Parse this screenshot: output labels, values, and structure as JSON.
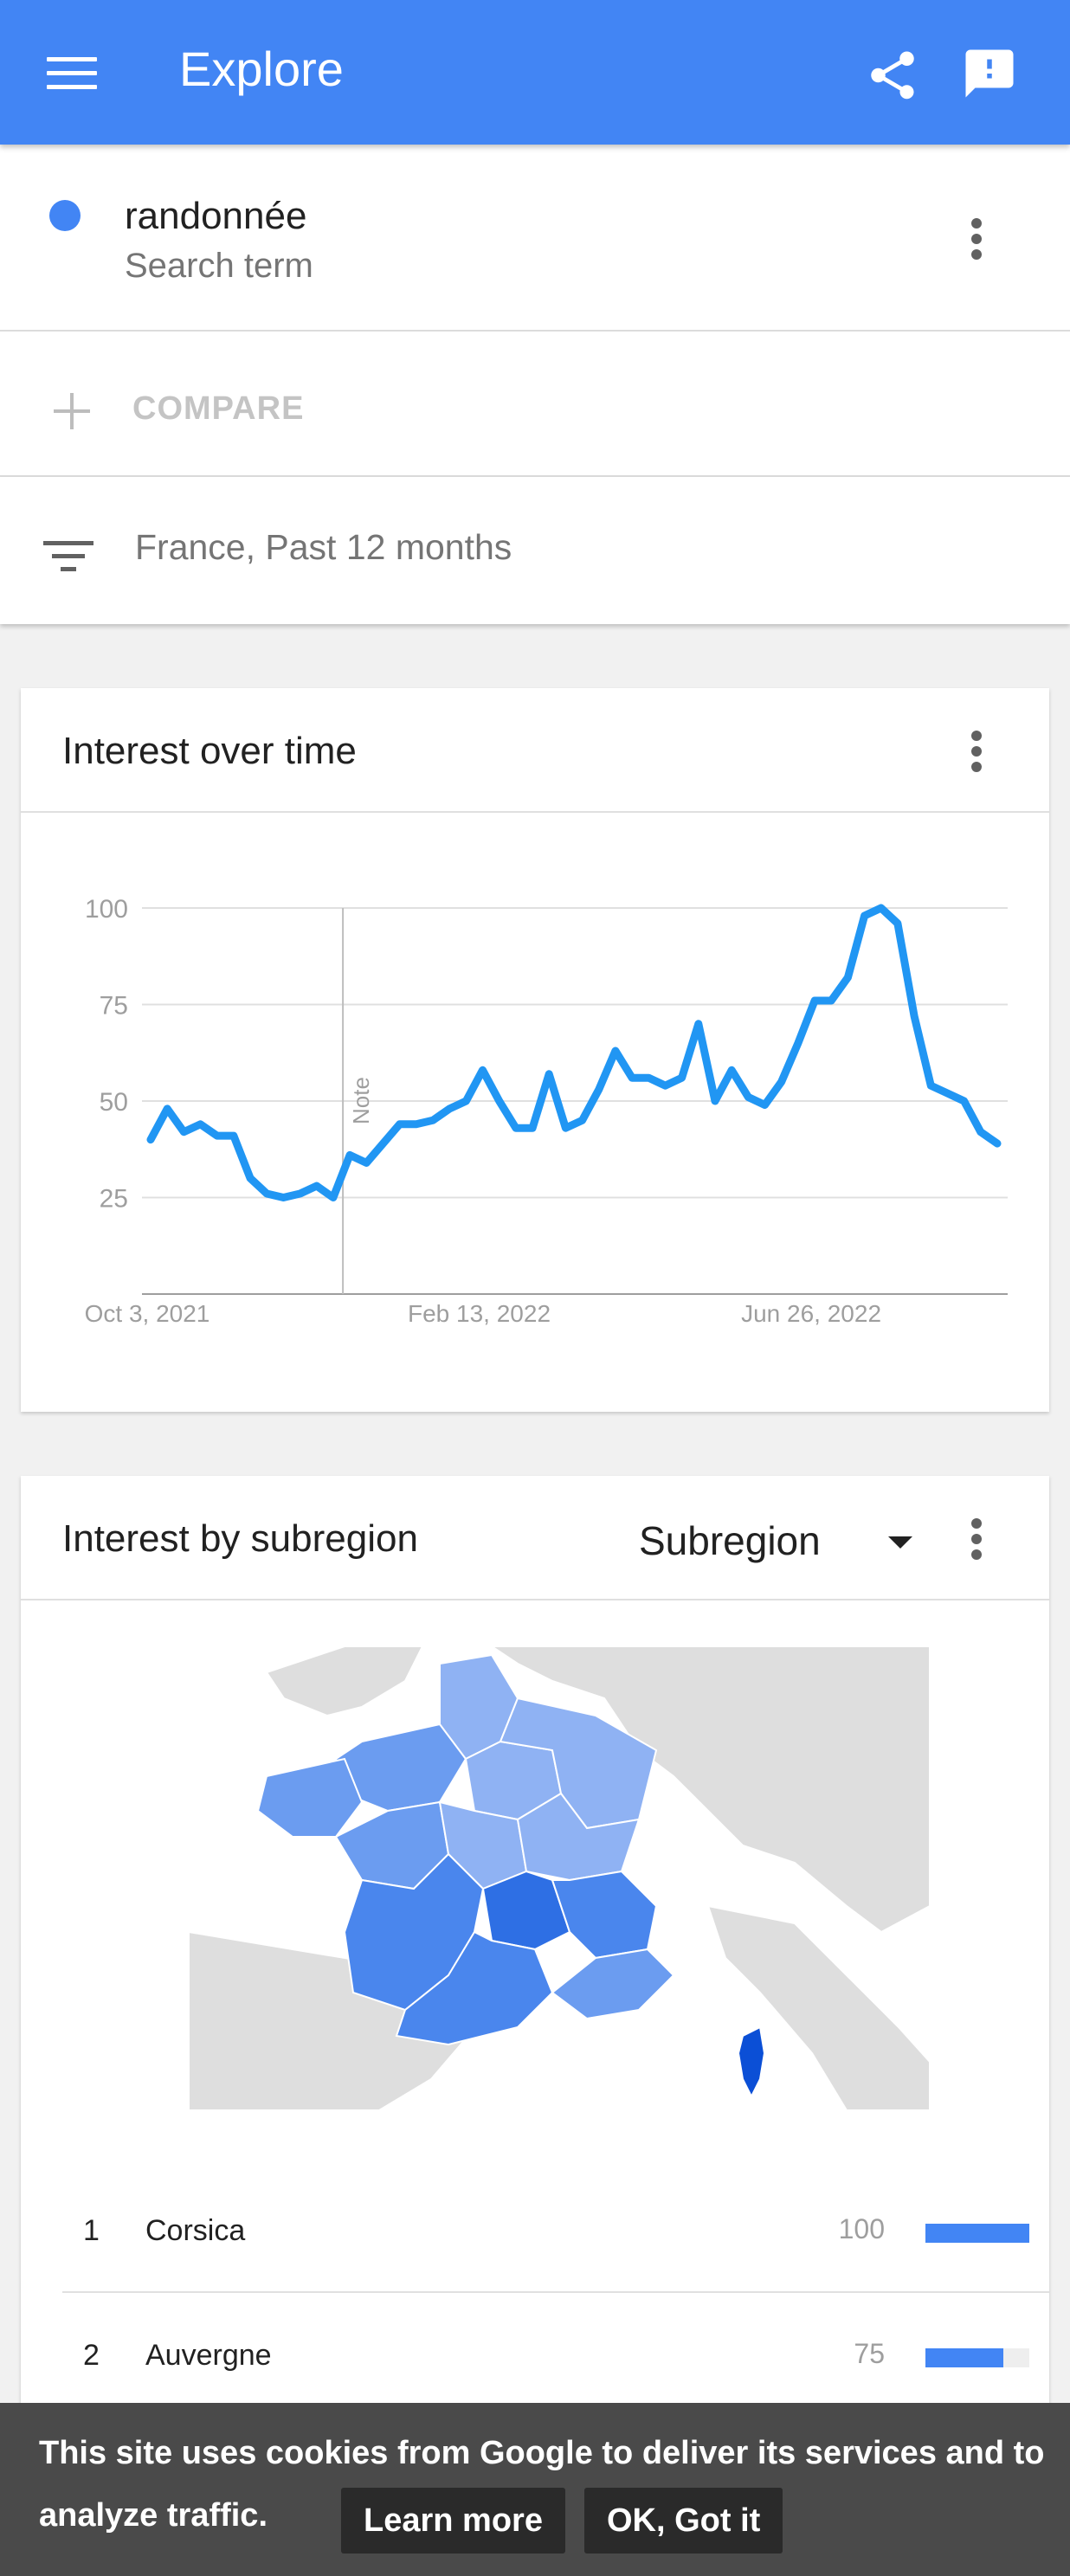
{
  "appbar": {
    "title": "Explore",
    "color": "#4285f4",
    "icons": [
      "menu-icon",
      "share-icon",
      "feedback-icon"
    ]
  },
  "search_term": {
    "term": "randonnée",
    "type": "Search term",
    "dot_color": "#4285f4"
  },
  "compare": {
    "label": "COMPARE"
  },
  "filter": {
    "label": "France, Past 12 months"
  },
  "interest_over_time": {
    "title": "Interest over time",
    "note_label": "Note"
  },
  "chart_data": {
    "type": "line",
    "title": "",
    "xlabel": "",
    "ylabel": "",
    "ylim": [
      0,
      100
    ],
    "yticks": [
      25,
      50,
      75,
      100
    ],
    "x_tick_labels": [
      "Oct 3, 2021",
      "Feb 13, 2022",
      "Jun 26, 2022"
    ],
    "grid": true,
    "series_color": "#2196f3",
    "series": [
      {
        "values": [
          40,
          48,
          42,
          44,
          41,
          41,
          30,
          26,
          25,
          26,
          28,
          25,
          36,
          34,
          39,
          44,
          44,
          45,
          48,
          50,
          58,
          50,
          43,
          43,
          57,
          43,
          45,
          53,
          63,
          56,
          56,
          54,
          56,
          70,
          50,
          58,
          51,
          49,
          55,
          65,
          76,
          76,
          82,
          98,
          100,
          96,
          72,
          54,
          52,
          50,
          42,
          39
        ]
      }
    ]
  },
  "interest_by_subregion": {
    "title": "Interest by subregion",
    "dropdown_label": "Subregion",
    "rows": [
      {
        "rank": "1",
        "name": "Corsica",
        "value": "100",
        "fraction": 1.0
      },
      {
        "rank": "2",
        "name": "Auvergne",
        "value": "75",
        "fraction": 0.75
      }
    ]
  },
  "cookie_banner": {
    "message": "This site uses cookies from Google to deliver its services and to analyze traffic.",
    "learn_more": "Learn more",
    "ok": "OK, Got it"
  }
}
